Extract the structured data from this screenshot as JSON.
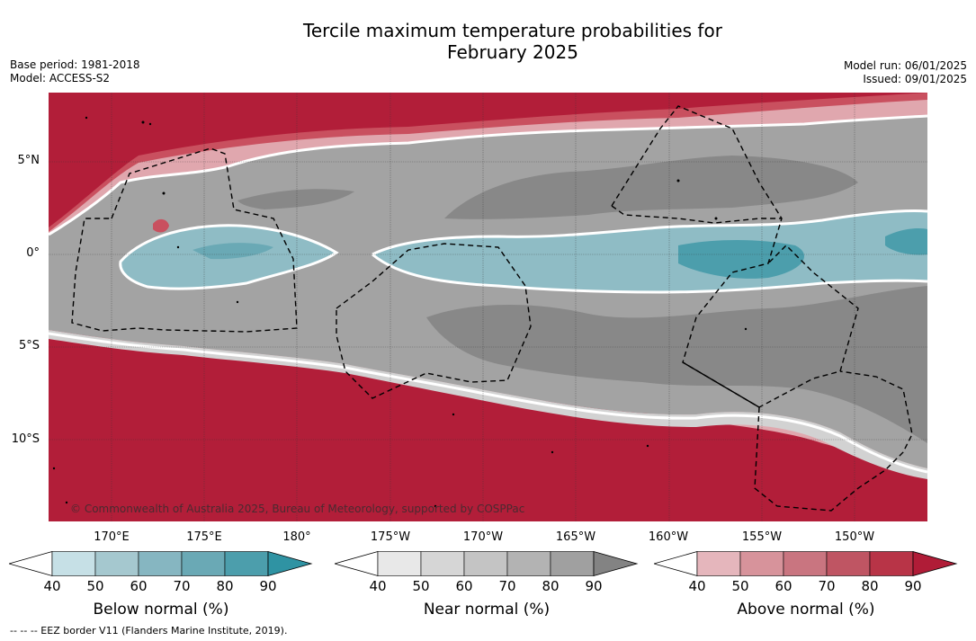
{
  "title_line1": "Tercile maximum temperature probabilities for",
  "title_line2": "February 2025",
  "base_period": "Base period: 1981-2018",
  "model": "Model: ACCESS-S2",
  "model_run": "Model run: 06/01/2025",
  "issued": "Issued: 09/01/2025",
  "lat_labels": [
    "5°N",
    "0°",
    "5°S",
    "10°S"
  ],
  "lon_labels": [
    "170°E",
    "175°E",
    "180°",
    "175°W",
    "170°W",
    "165°W",
    "160°W",
    "155°W",
    "150°W"
  ],
  "copyright": "© Commonwealth of Australia 2025, Bureau of Meteorology, supported by COSPPac",
  "footer": "--  --  -- EEZ border V11 (Flanders Marine Institute, 2019).",
  "colorbars": [
    {
      "title": "Below normal (%)",
      "ticks": [
        "40",
        "50",
        "60",
        "70",
        "80",
        "90"
      ],
      "colors": [
        "#ffffff",
        "#c6e0e6",
        "#a5c8cf",
        "#86b6c1",
        "#6aa9b5",
        "#4c9eac",
        "#2f93a3"
      ]
    },
    {
      "title": "Near normal (%)",
      "ticks": [
        "40",
        "50",
        "60",
        "70",
        "80",
        "90"
      ],
      "colors": [
        "#ffffff",
        "#e8e8e8",
        "#d6d6d6",
        "#c4c4c4",
        "#b3b3b3",
        "#a0a0a0",
        "#838383"
      ]
    },
    {
      "title": "Above normal (%)",
      "ticks": [
        "40",
        "50",
        "60",
        "70",
        "80",
        "90"
      ],
      "colors": [
        "#ffffff",
        "#e5b6bc",
        "#d7939b",
        "#c97580",
        "#bf5563",
        "#b83447",
        "#b01c37"
      ]
    }
  ],
  "colors": {
    "above": "#b21e39",
    "above_light": "#c9505f",
    "near": "#a3a3a3",
    "near_dark": "#888888",
    "near_light": "#cfcfcf",
    "below": "#8fbcc5",
    "below_dark": "#3f9aab"
  }
}
